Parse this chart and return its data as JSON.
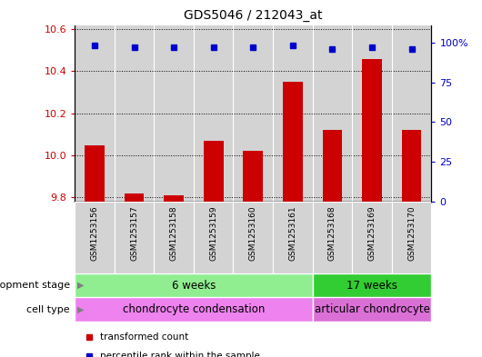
{
  "title": "GDS5046 / 212043_at",
  "samples": [
    "GSM1253156",
    "GSM1253157",
    "GSM1253158",
    "GSM1253159",
    "GSM1253160",
    "GSM1253161",
    "GSM1253168",
    "GSM1253169",
    "GSM1253170"
  ],
  "bar_values": [
    10.05,
    9.82,
    9.81,
    10.07,
    10.02,
    10.35,
    10.12,
    10.46,
    10.12
  ],
  "bar_base": 9.78,
  "percentile_values": [
    98,
    97,
    97,
    97,
    97,
    98,
    96,
    97,
    96
  ],
  "bar_color": "#cc0000",
  "dot_color": "#0000cc",
  "ylim_left": [
    9.78,
    10.62
  ],
  "yticks_left": [
    9.8,
    10.0,
    10.2,
    10.4,
    10.6
  ],
  "yticks_right": [
    0,
    25,
    50,
    75,
    100
  ],
  "ylim_right": [
    0,
    111
  ],
  "group1_label": "6 weeks",
  "group2_label": "17 weeks",
  "group1_count": 6,
  "group2_count": 3,
  "celltype1_label": "chondrocyte condensation",
  "celltype2_label": "articular chondrocyte",
  "dev_stage_label": "development stage",
  "cell_type_label": "cell type",
  "legend_bar": "transformed count",
  "legend_dot": "percentile rank within the sample",
  "plot_bg_color": "#d3d3d3",
  "group1_color": "#90ee90",
  "group2_color": "#32cd32",
  "celltype1_color": "#ee82ee",
  "celltype2_color": "#da70d6",
  "fig_bg": "#ffffff",
  "border_color": "#000000"
}
